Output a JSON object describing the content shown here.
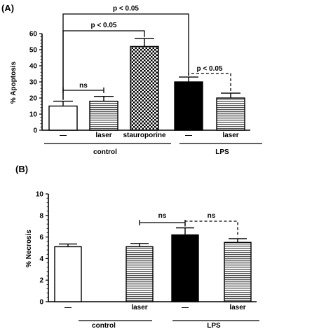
{
  "colors": {
    "axis": "#000000",
    "open": "#ffffff",
    "solid": "#000000"
  },
  "chart_data": [
    {
      "panel": "(A)",
      "type": "bar",
      "ylabel": "% Apoptosis",
      "ylim": [
        0,
        60
      ],
      "yticks": [
        0,
        10,
        20,
        30,
        40,
        50,
        60
      ],
      "grid": false,
      "bars": [
        {
          "label": "—",
          "group": "control",
          "value": 15,
          "error": 3,
          "fill": "open"
        },
        {
          "label": "laser",
          "group": "control",
          "value": 18,
          "error": 3,
          "fill": "hatched"
        },
        {
          "label": "stauroporine",
          "group": "control",
          "value": 52,
          "error": 5,
          "fill": "checkered"
        },
        {
          "label": "—",
          "group": "LPS",
          "value": 30,
          "error": 3,
          "fill": "solid"
        },
        {
          "label": "laser",
          "group": "LPS",
          "value": 20,
          "error": 3,
          "fill": "hatched"
        }
      ],
      "groups": [
        "control",
        "LPS"
      ],
      "annotations": [
        {
          "text": "p < 0.05",
          "from": 0,
          "to": 3,
          "style": "solid"
        },
        {
          "text": "p < 0.05",
          "from": 0,
          "to": 2,
          "style": "solid"
        },
        {
          "text": "ns",
          "from": 0,
          "to": 1,
          "style": "solid"
        },
        {
          "text": "p < 0.05",
          "from": 3,
          "to": 4,
          "style": "dashed"
        }
      ]
    },
    {
      "panel": "(B)",
      "type": "bar",
      "ylabel": "% Necrosis",
      "ylim": [
        0,
        10
      ],
      "yticks": [
        0,
        2,
        4,
        6,
        8,
        10
      ],
      "grid": false,
      "bars": [
        {
          "label": "—",
          "group": "control",
          "value": 5.1,
          "error": 0.25,
          "fill": "open"
        },
        {
          "label": "laser",
          "group": "control",
          "value": 5.1,
          "error": 0.3,
          "fill": "hatched"
        },
        {
          "label": "—",
          "group": "LPS",
          "value": 6.2,
          "error": 0.65,
          "fill": "solid"
        },
        {
          "label": "laser",
          "group": "LPS",
          "value": 5.5,
          "error": 0.35,
          "fill": "hatched"
        }
      ],
      "groups": [
        "control",
        "LPS"
      ],
      "annotations": [
        {
          "text": "ns",
          "from": 1,
          "to": 2,
          "style": "solid"
        },
        {
          "text": "ns",
          "from": 2,
          "to": 3,
          "style": "dashed"
        }
      ]
    }
  ]
}
